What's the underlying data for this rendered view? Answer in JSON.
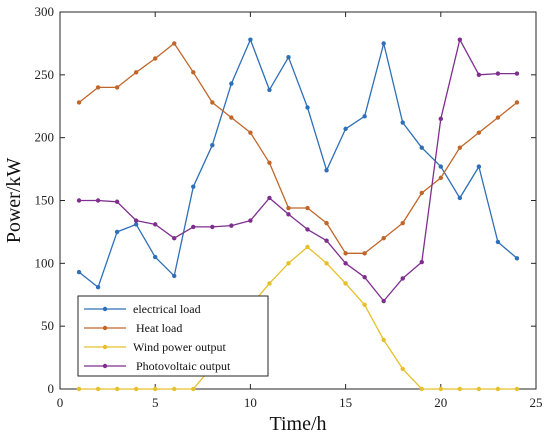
{
  "chart_data": {
    "type": "line",
    "xlabel": "Time/h",
    "ylabel": "Power/kW",
    "xlim": [
      0,
      25
    ],
    "ylim": [
      0,
      300
    ],
    "xticks": [
      0,
      5,
      10,
      15,
      20,
      25
    ],
    "yticks": [
      0,
      50,
      100,
      150,
      200,
      250,
      300
    ],
    "grid": false,
    "legend_position": "bottom-left",
    "x": [
      1,
      2,
      3,
      4,
      5,
      6,
      7,
      8,
      9,
      10,
      11,
      12,
      13,
      14,
      15,
      16,
      17,
      18,
      19,
      20,
      21,
      22,
      23,
      24
    ],
    "series": [
      {
        "name": "electrical load",
        "color": "#2f6fb7",
        "values": [
          93,
          81,
          125,
          131,
          105,
          90,
          161,
          194,
          243,
          278,
          238,
          264,
          224,
          174,
          207,
          217,
          275,
          212,
          192,
          177,
          152,
          177,
          117,
          104
        ]
      },
      {
        "name": " Heat load",
        "color": "#c0662a",
        "values": [
          228,
          240,
          240,
          252,
          263,
          275,
          252,
          228,
          216,
          204,
          180,
          144,
          144,
          132,
          108,
          108,
          120,
          132,
          156,
          168,
          192,
          204,
          216,
          228
        ]
      },
      {
        "name": "Wind power output",
        "color": "#e6c02b",
        "values": [
          0,
          0,
          0,
          0,
          0,
          0,
          0,
          18,
          40,
          66,
          84,
          100,
          113,
          100,
          84,
          67,
          39,
          16,
          0,
          0,
          0,
          0,
          0,
          0
        ]
      },
      {
        "name": " Photovoltaic output",
        "color": "#7e2f8e",
        "values": [
          150,
          150,
          149,
          134,
          131,
          120,
          129,
          129,
          130,
          134,
          152,
          139,
          127,
          118,
          100,
          89,
          70,
          88,
          101,
          215,
          278,
          250,
          251,
          251
        ]
      }
    ]
  }
}
